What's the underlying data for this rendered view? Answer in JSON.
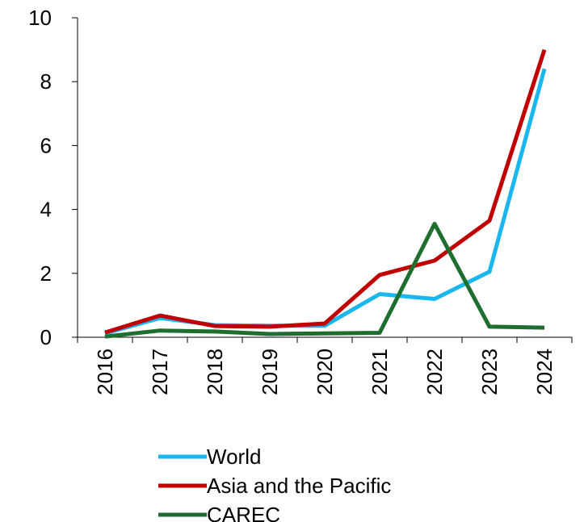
{
  "chart_data": {
    "type": "line",
    "title": "",
    "xlabel": "",
    "ylabel": "",
    "categories": [
      "2016",
      "2017",
      "2018",
      "2019",
      "2020",
      "2021",
      "2022",
      "2023",
      "2024"
    ],
    "ylim": [
      0,
      10
    ],
    "yticks": [
      0,
      2,
      4,
      6,
      8,
      10
    ],
    "grid": false,
    "legend_position": "bottom",
    "series": [
      {
        "name": "World",
        "color": "#1ab6ee",
        "values": [
          0.12,
          0.6,
          0.38,
          0.36,
          0.36,
          1.35,
          1.2,
          2.05,
          8.4
        ]
      },
      {
        "name": "Asia and the Pacific",
        "color": "#c00000",
        "values": [
          0.15,
          0.68,
          0.35,
          0.33,
          0.43,
          1.95,
          2.4,
          3.65,
          9.0
        ]
      },
      {
        "name": "CAREC",
        "color": "#1e6e30",
        "values": [
          0.02,
          0.21,
          0.18,
          0.1,
          0.12,
          0.14,
          3.55,
          0.33,
          0.3
        ]
      }
    ]
  }
}
